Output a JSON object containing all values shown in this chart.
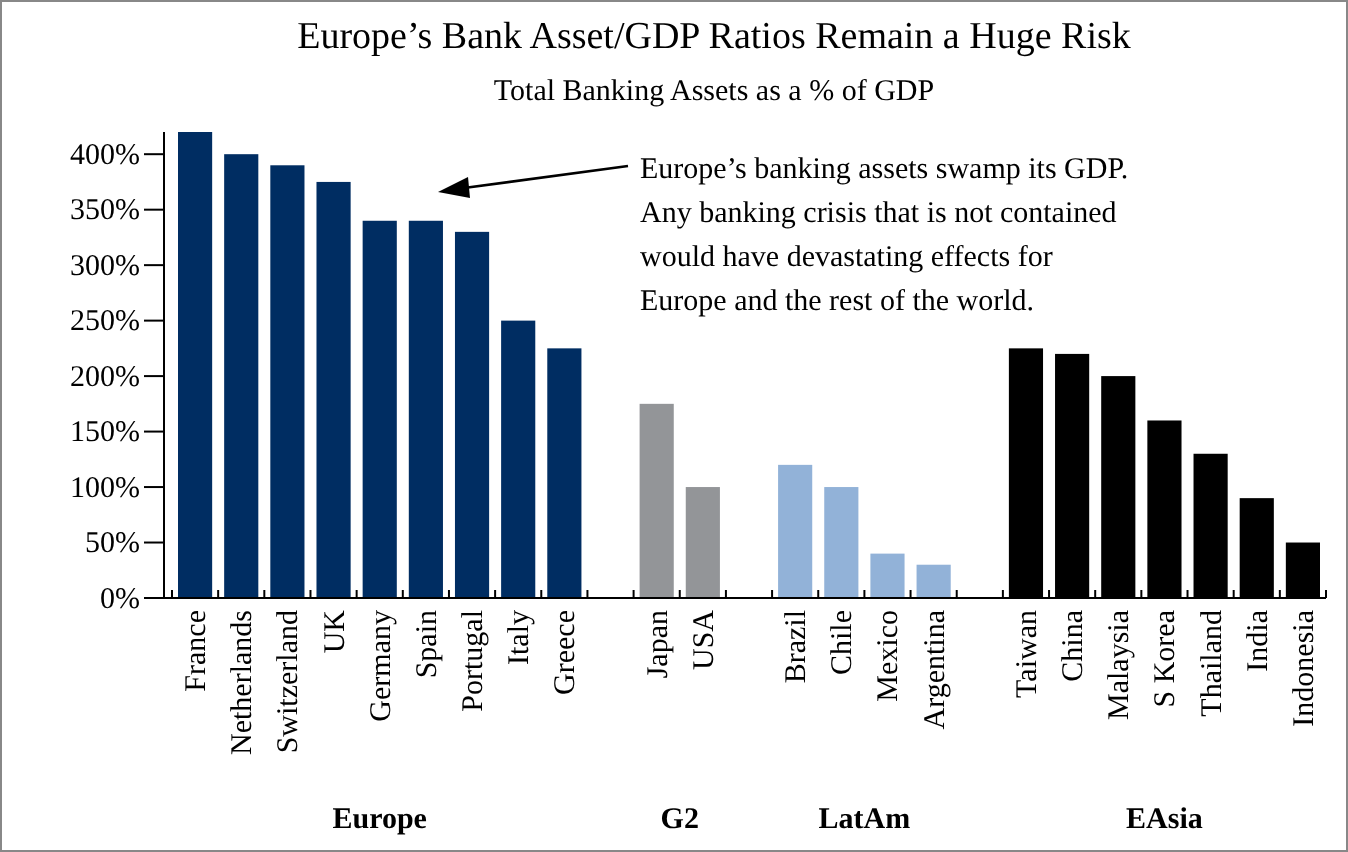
{
  "chart_data": {
    "type": "bar",
    "title": "Europe’s Bank Asset/GDP Ratios Remain a Huge Risk",
    "subtitle": "Total Banking Assets as a % of GDP",
    "categories": [
      "France",
      "Netherlands",
      "Switzerland",
      "UK",
      "Germany",
      "Spain",
      "Portugal",
      "Italy",
      "Greece",
      null,
      "Japan",
      "USA",
      null,
      "Brazil",
      "Chile",
      "Mexico",
      "Argentina",
      null,
      "Taiwan",
      "China",
      "Malaysia",
      "S Korea",
      "Thailand",
      "India",
      "Indonesia"
    ],
    "series": [
      {
        "color": "#002d62",
        "values": [
          420,
          400,
          390,
          375,
          340,
          340,
          330,
          250,
          225,
          null,
          null,
          null,
          null,
          null,
          null,
          null,
          null,
          null,
          null,
          null,
          null,
          null,
          null,
          null,
          null
        ]
      },
      {
        "color": "#939598",
        "values": [
          null,
          null,
          null,
          null,
          null,
          null,
          null,
          null,
          null,
          null,
          175,
          100,
          null,
          null,
          null,
          null,
          null,
          null,
          null,
          null,
          null,
          null,
          null,
          null,
          null
        ]
      },
      {
        "color": "#92b2d8",
        "values": [
          null,
          null,
          null,
          null,
          null,
          null,
          null,
          null,
          null,
          null,
          null,
          null,
          null,
          120,
          100,
          40,
          30,
          null,
          null,
          null,
          null,
          null,
          null,
          null,
          null
        ]
      },
      {
        "color": "#000000",
        "values": [
          null,
          null,
          null,
          null,
          null,
          null,
          null,
          null,
          null,
          null,
          null,
          null,
          null,
          null,
          null,
          null,
          null,
          null,
          225,
          220,
          200,
          160,
          130,
          90,
          50
        ]
      }
    ],
    "ylim": [
      0,
      420
    ],
    "yticks": [
      {
        "value": 0,
        "label": "0%"
      },
      {
        "value": 50,
        "label": "50%"
      },
      {
        "value": 100,
        "label": "100%"
      },
      {
        "value": 150,
        "label": "150%"
      },
      {
        "value": 200,
        "label": "200%"
      },
      {
        "value": 250,
        "label": "250%"
      },
      {
        "value": 300,
        "label": "300%"
      },
      {
        "value": 350,
        "label": "350%"
      },
      {
        "value": 400,
        "label": "400%"
      }
    ],
    "grid": false,
    "annotations": [
      "Europe’s banking assets swamp its GDP.\nAny banking crisis that is not contained\nwould have devastating effects for\nEurope and the rest of the world.",
      "Europe",
      "G2",
      "LatAm",
      "EAsia"
    ]
  }
}
